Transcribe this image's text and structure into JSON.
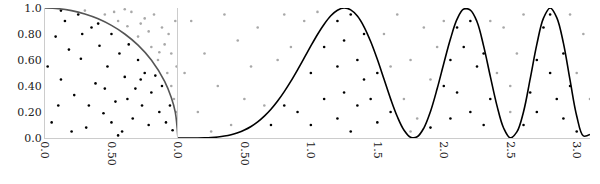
{
  "chart_data": [
    {
      "type": "scatter",
      "xlim": [
        0,
        1
      ],
      "ylim": [
        0,
        1
      ],
      "xticks": [
        {
          "value": 0,
          "label": "0.0"
        },
        {
          "value": 0.5,
          "label": "0.50"
        }
      ],
      "yticks": [
        {
          "value": 0,
          "label": "0.0"
        },
        {
          "value": 0.2,
          "label": "0.20"
        },
        {
          "value": 0.4,
          "label": "0.40"
        },
        {
          "value": 0.6,
          "label": "0.60"
        },
        {
          "value": 0.8,
          "label": "0.80"
        },
        {
          "value": 1,
          "label": "1.0"
        }
      ],
      "grid": false,
      "series": [
        {
          "type": "line",
          "line_style": "solid",
          "color": "#555555",
          "x": [
            0,
            0.1,
            0.2,
            0.3,
            0.4,
            0.5,
            0.6,
            0.7,
            0.8,
            0.9,
            0.95,
            0.98,
            1
          ],
          "values": [
            1,
            0.995,
            0.98,
            0.954,
            0.917,
            0.866,
            0.8,
            0.714,
            0.6,
            0.436,
            0.312,
            0.199,
            0
          ]
        },
        {
          "type": "scatter",
          "marker": "dot",
          "color": "#000000",
          "x": [
            0.05,
            0.12,
            0.08,
            0.15,
            0.22,
            0.27,
            0.31,
            0.35,
            0.38,
            0.41,
            0.44,
            0.47,
            0.5,
            0.53,
            0.56,
            0.58,
            0.6,
            0.63,
            0.66,
            0.68,
            0.7,
            0.73,
            0.75,
            0.78,
            0.8,
            0.83,
            0.86,
            0.88,
            0.91,
            0.94,
            0.96,
            0.02,
            0.1,
            0.18,
            0.25,
            0.2,
            0.33,
            0.45,
            0.62,
            0.4,
            0.55,
            0.72,
            0.12,
            0.28,
            0.5
          ],
          "values": [
            0.12,
            0.45,
            0.78,
            0.9,
            0.33,
            0.61,
            0.08,
            0.85,
            0.42,
            0.71,
            0.19,
            0.55,
            0.8,
            0.28,
            0.65,
            0.05,
            0.47,
            0.72,
            0.15,
            0.38,
            0.6,
            0.25,
            0.5,
            0.1,
            0.35,
            0.48,
            0.2,
            0.4,
            0.12,
            0.25,
            0.06,
            0.55,
            0.25,
            0.68,
            0.95,
            0.05,
            0.25,
            0.38,
            0.3,
            0.88,
            0.02,
            0.45,
            0.98,
            0.8,
            0.12
          ]
        },
        {
          "type": "scatter",
          "marker": "dot",
          "color": "#a8a8a8",
          "x": [
            0.3,
            0.45,
            0.55,
            0.62,
            0.7,
            0.75,
            0.8,
            0.85,
            0.88,
            0.92,
            0.95,
            0.97,
            0.99,
            0.9,
            0.65,
            0.82,
            0.95,
            0.98,
            0.6,
            0.78,
            0.93,
            0.72,
            0.99,
            0.86,
            0.52
          ],
          "values": [
            0.98,
            0.95,
            0.9,
            0.86,
            0.78,
            0.92,
            0.7,
            0.6,
            0.85,
            0.5,
            0.4,
            0.3,
            0.2,
            0.72,
            0.97,
            0.95,
            0.65,
            0.9,
            0.99,
            0.82,
            0.8,
            0.88,
            0.55,
            0.66,
            0.97
          ]
        }
      ]
    },
    {
      "type": "scatter",
      "xlim": [
        0,
        3.1
      ],
      "ylim": [
        0,
        1
      ],
      "xticks": [
        {
          "value": 0,
          "label": "0.0"
        },
        {
          "value": 0.5,
          "label": "0.50"
        },
        {
          "value": 1,
          "label": "1.0"
        },
        1.5,
        {
          "value": 2,
          "label": "2.0"
        },
        2.5,
        {
          "value": 3,
          "label": "3.0"
        }
      ],
      "yticks": [
        0,
        0.2,
        0.4,
        0.6,
        0.8,
        1
      ],
      "tick_labels": "x",
      "grid": false,
      "series": [
        {
          "type": "line",
          "line_style": "solid",
          "color": "#000000",
          "x": [
            0,
            0.05,
            0.1,
            0.15,
            0.2,
            0.25,
            0.3,
            0.35,
            0.4,
            0.45,
            0.5,
            0.55,
            0.6,
            0.65,
            0.7,
            0.75,
            0.8,
            0.85,
            0.9,
            0.95,
            1,
            1.05,
            1.1,
            1.15,
            1.2,
            1.25,
            1.3,
            1.35,
            1.4,
            1.45,
            1.5,
            1.55,
            1.6,
            1.65,
            1.7,
            1.75,
            1.8,
            1.85,
            1.9,
            1.95,
            2,
            2.05,
            2.1,
            2.15,
            2.2,
            2.25,
            2.3,
            2.35,
            2.4,
            2.45,
            2.5,
            2.55,
            2.6,
            2.65,
            2.7,
            2.75,
            2.8,
            2.85,
            2.9,
            2.95,
            3,
            3.05,
            3.1
          ],
          "values": [
            0,
            0,
            0.0001,
            0.0005,
            0.0016,
            0.0039,
            0.0081,
            0.0149,
            0.0254,
            0.0405,
            0.0612,
            0.0888,
            0.1241,
            0.1682,
            0.2215,
            0.2844,
            0.3567,
            0.4373,
            0.5246,
            0.6159,
            0.7081,
            0.7964,
            0.8754,
            0.9401,
            0.9831,
            1,
            0.9858,
            0.9382,
            0.8555,
            0.742,
            0.6054,
            0.4535,
            0.3011,
            0.1652,
            0.0618,
            0.0062,
            0.0097,
            0.0768,
            0.2043,
            0.3782,
            0.5728,
            0.7609,
            0.9139,
            0.9918,
            0.9837,
            0.8945,
            0.7069,
            0.4743,
            0.2494,
            0.0771,
            0.0011,
            0.0467,
            0.2025,
            0.4548,
            0.7201,
            0.9216,
            0.9998,
            0.9262,
            0.7295,
            0.4444,
            0.1698,
            0.0164,
            0.0276
          ]
        },
        {
          "type": "scatter",
          "marker": "dot",
          "color": "#000000",
          "x": [
            0.9,
            1,
            1,
            1.1,
            1.1,
            1.2,
            1.2,
            1.2,
            1.25,
            1.25,
            1.3,
            1.3,
            1.35,
            1.35,
            1.4,
            1.4,
            1.5,
            1.5,
            1.6,
            0.7,
            0.8,
            1.45,
            1.9,
            2,
            2.05,
            2.05,
            2.1,
            2.1,
            2.15,
            2.2,
            2.2,
            2.25,
            2.3,
            2.3,
            2.35,
            2.6,
            2.65,
            2.7,
            2.7,
            2.75,
            2.8,
            2.8,
            2.85,
            2.9,
            2.9,
            2.95,
            3
          ],
          "values": [
            0.2,
            0.5,
            0.1,
            0.7,
            0.3,
            0.9,
            0.55,
            0.15,
            0.75,
            0.35,
            0.95,
            0.05,
            0.6,
            0.25,
            0.8,
            0.45,
            0.5,
            0.12,
            0.2,
            0.1,
            0.25,
            0.3,
            0.08,
            0.4,
            0.6,
            0.15,
            0.85,
            0.35,
            0.7,
            0.9,
            0.2,
            0.55,
            0.65,
            0.1,
            0.3,
            0.1,
            0.35,
            0.6,
            0.2,
            0.85,
            0.5,
            0.95,
            0.3,
            0.65,
            0.15,
            0.4,
            0.05
          ]
        },
        {
          "type": "scatter",
          "marker": "dot",
          "color": "#a8a8a8",
          "x": [
            0.05,
            0.1,
            0.15,
            0.2,
            0.3,
            0.35,
            0.4,
            0.45,
            0.5,
            0.55,
            0.6,
            0.65,
            0.75,
            0.8,
            0.85,
            0.95,
            1.05,
            1.55,
            1.6,
            1.65,
            1.7,
            1.75,
            1.8,
            1.85,
            1.9,
            1.95,
            2,
            2.4,
            2.45,
            2.5,
            2.55,
            2.6,
            2.35,
            3,
            3.05,
            3.1,
            2.95,
            0.25,
            1.75,
            2.5
          ],
          "values": [
            0.5,
            0.9,
            0.2,
            0.65,
            0.4,
            0.95,
            0.1,
            0.75,
            0.3,
            0.55,
            0.85,
            0.25,
            0.6,
            0.95,
            0.7,
            0.9,
            0.97,
            0.8,
            0.55,
            0.95,
            0.3,
            0.6,
            0.15,
            0.85,
            0.45,
            0.7,
            0.9,
            0.5,
            0.85,
            0.2,
            0.65,
            0.95,
            0.9,
            0.5,
            0.8,
            0.3,
            0.95,
            0.05,
            0.05,
            0.4
          ]
        }
      ]
    }
  ]
}
